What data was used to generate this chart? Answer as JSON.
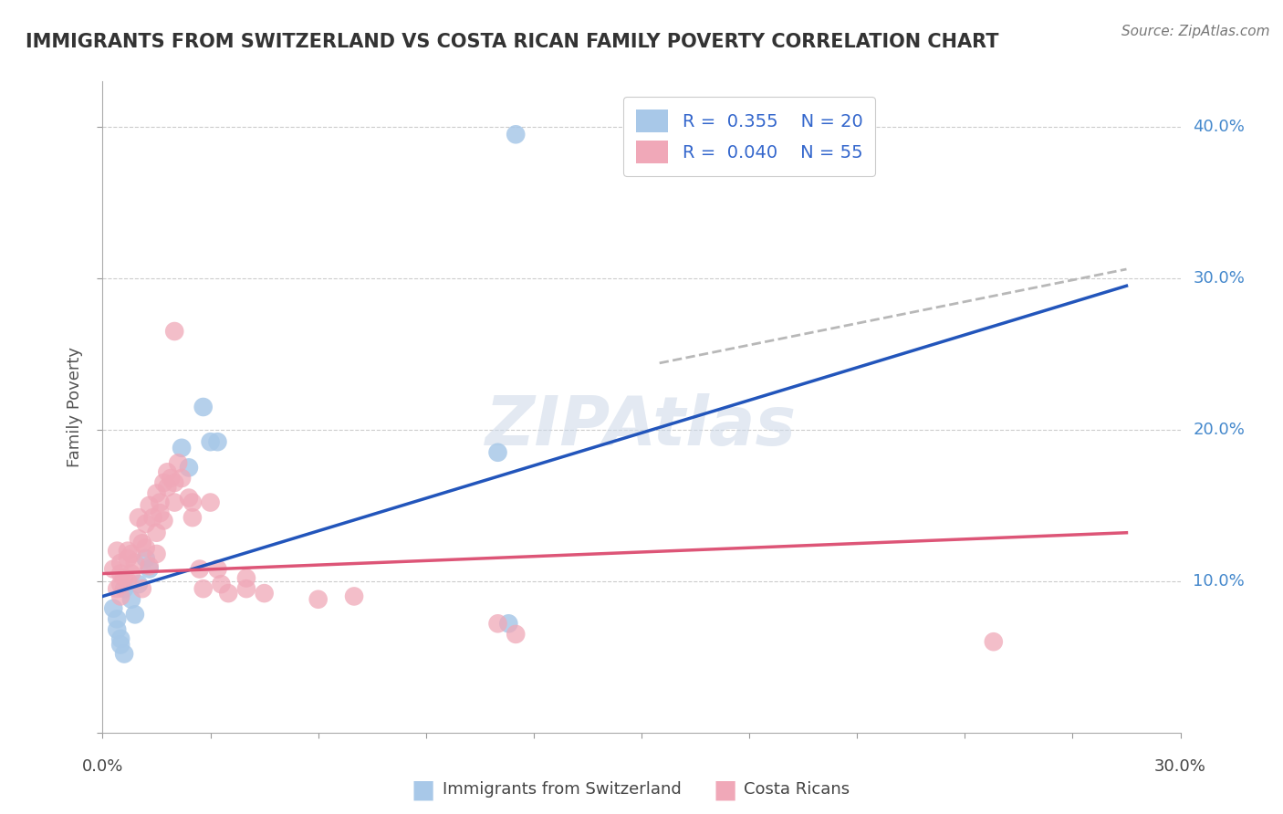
{
  "title": "IMMIGRANTS FROM SWITZERLAND VS COSTA RICAN FAMILY POVERTY CORRELATION CHART",
  "source": "Source: ZipAtlas.com",
  "ylabel": "Family Poverty",
  "xlim": [
    0.0,
    0.3
  ],
  "ylim": [
    0.0,
    0.43
  ],
  "legend_r1": "R =  0.355",
  "legend_n1": "N = 20",
  "legend_r2": "R =  0.040",
  "legend_n2": "N = 55",
  "blue_color": "#a8c8e8",
  "pink_color": "#f0a8b8",
  "blue_line_color": "#2255bb",
  "pink_line_color": "#dd5577",
  "dash_line_color": "#b8b8b8",
  "scatter_blue": [
    [
      0.003,
      0.082
    ],
    [
      0.004,
      0.075
    ],
    [
      0.004,
      0.068
    ],
    [
      0.005,
      0.062
    ],
    [
      0.005,
      0.058
    ],
    [
      0.006,
      0.052
    ],
    [
      0.006,
      0.095
    ],
    [
      0.008,
      0.088
    ],
    [
      0.009,
      0.078
    ],
    [
      0.01,
      0.098
    ],
    [
      0.012,
      0.115
    ],
    [
      0.013,
      0.108
    ],
    [
      0.022,
      0.188
    ],
    [
      0.024,
      0.175
    ],
    [
      0.028,
      0.215
    ],
    [
      0.03,
      0.192
    ],
    [
      0.11,
      0.185
    ],
    [
      0.113,
      0.072
    ],
    [
      0.032,
      0.192
    ],
    [
      0.115,
      0.395
    ]
  ],
  "scatter_pink": [
    [
      0.003,
      0.108
    ],
    [
      0.004,
      0.095
    ],
    [
      0.004,
      0.12
    ],
    [
      0.005,
      0.112
    ],
    [
      0.005,
      0.098
    ],
    [
      0.005,
      0.09
    ],
    [
      0.005,
      0.105
    ],
    [
      0.006,
      0.102
    ],
    [
      0.007,
      0.1
    ],
    [
      0.007,
      0.115
    ],
    [
      0.007,
      0.12
    ],
    [
      0.008,
      0.105
    ],
    [
      0.008,
      0.118
    ],
    [
      0.009,
      0.112
    ],
    [
      0.01,
      0.128
    ],
    [
      0.01,
      0.142
    ],
    [
      0.011,
      0.125
    ],
    [
      0.011,
      0.095
    ],
    [
      0.012,
      0.138
    ],
    [
      0.012,
      0.122
    ],
    [
      0.013,
      0.11
    ],
    [
      0.013,
      0.15
    ],
    [
      0.014,
      0.142
    ],
    [
      0.015,
      0.132
    ],
    [
      0.015,
      0.118
    ],
    [
      0.015,
      0.158
    ],
    [
      0.016,
      0.145
    ],
    [
      0.016,
      0.152
    ],
    [
      0.017,
      0.14
    ],
    [
      0.017,
      0.165
    ],
    [
      0.018,
      0.172
    ],
    [
      0.018,
      0.162
    ],
    [
      0.019,
      0.168
    ],
    [
      0.02,
      0.165
    ],
    [
      0.02,
      0.152
    ],
    [
      0.021,
      0.178
    ],
    [
      0.022,
      0.168
    ],
    [
      0.024,
      0.155
    ],
    [
      0.025,
      0.142
    ],
    [
      0.025,
      0.152
    ],
    [
      0.027,
      0.108
    ],
    [
      0.028,
      0.095
    ],
    [
      0.03,
      0.152
    ],
    [
      0.032,
      0.108
    ],
    [
      0.033,
      0.098
    ],
    [
      0.035,
      0.092
    ],
    [
      0.04,
      0.102
    ],
    [
      0.04,
      0.095
    ],
    [
      0.045,
      0.092
    ],
    [
      0.06,
      0.088
    ],
    [
      0.07,
      0.09
    ],
    [
      0.11,
      0.072
    ],
    [
      0.115,
      0.065
    ],
    [
      0.248,
      0.06
    ],
    [
      0.02,
      0.265
    ]
  ],
  "blue_trend_x": [
    0.0,
    0.285
  ],
  "blue_trend_y": [
    0.09,
    0.295
  ],
  "pink_trend_x": [
    0.0,
    0.285
  ],
  "pink_trend_y": [
    0.105,
    0.132
  ],
  "dash_trend_x": [
    0.155,
    0.285
  ],
  "dash_trend_y": [
    0.244,
    0.306
  ]
}
